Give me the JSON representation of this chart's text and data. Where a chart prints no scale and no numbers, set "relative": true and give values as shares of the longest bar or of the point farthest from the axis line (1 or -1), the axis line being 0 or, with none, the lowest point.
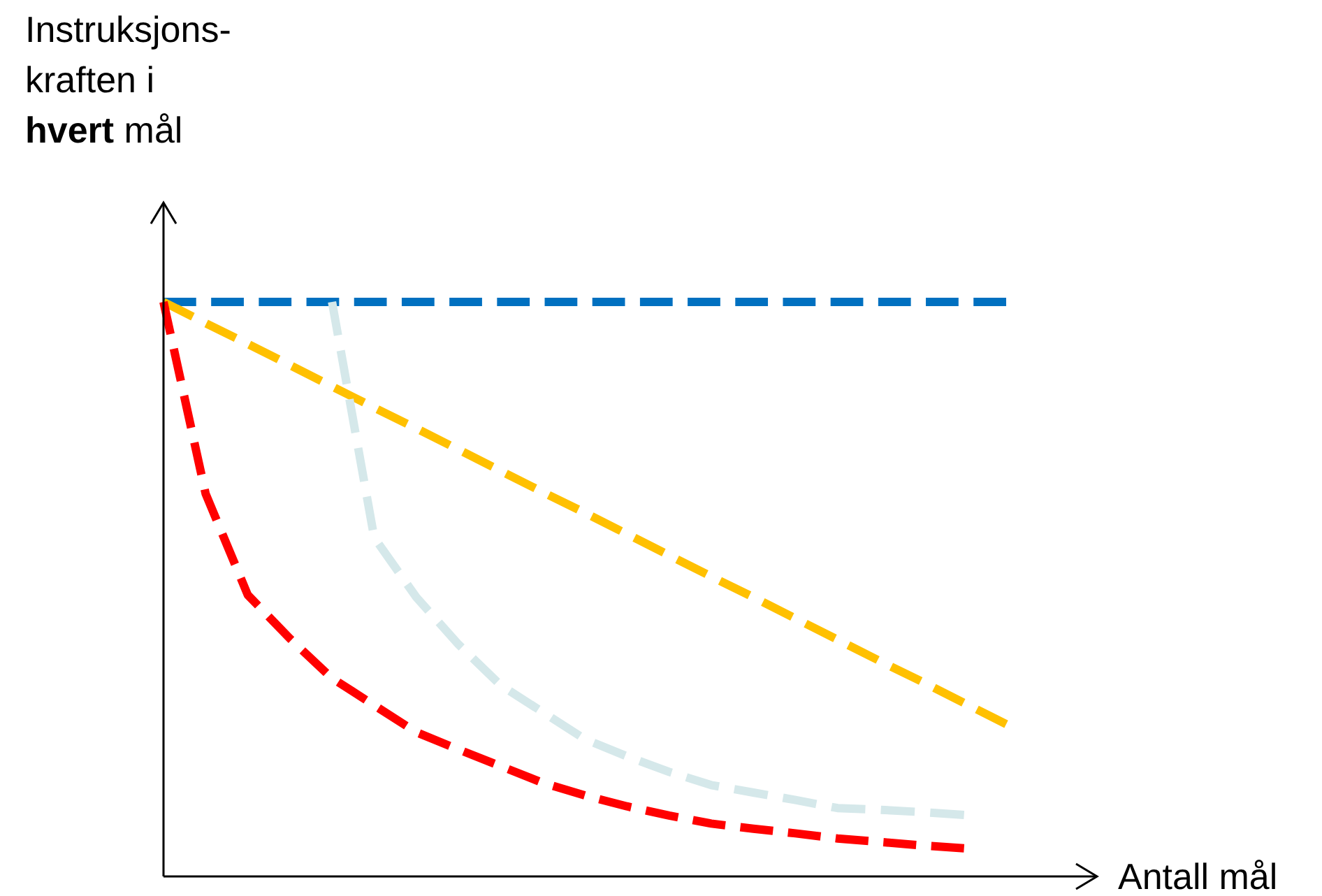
{
  "chart_data": {
    "type": "line",
    "relative": true,
    "ylabel": "Instruksjons-\nkraften i\nhvert mål",
    "xlabel": "Antall mål",
    "line_style": "dashed",
    "categories": [
      null,
      null,
      null,
      null,
      null,
      null,
      null,
      null,
      null,
      null,
      null,
      null,
      null,
      null,
      null,
      null,
      null,
      null,
      null,
      null,
      null
    ],
    "series": [
      {
        "color": "#0070c0",
        "values": [
          1,
          1,
          1,
          1,
          1,
          1,
          1,
          1,
          1,
          1,
          1,
          1,
          1,
          1,
          1,
          1,
          1,
          1,
          1,
          1,
          1
        ]
      },
      {
        "color": "#ffc000",
        "values": [
          1,
          0.963,
          0.927,
          0.89,
          0.853,
          0.816,
          0.78,
          0.743,
          0.706,
          0.669,
          0.633,
          0.596,
          0.559,
          0.522,
          0.486,
          0.449,
          0.412,
          0.375,
          0.339,
          0.302,
          0.265
        ]
      },
      {
        "color": "#ff0000",
        "values": [
          1,
          0.666,
          0.49,
          0.414,
          0.345,
          0.298,
          0.251,
          0.221,
          0.192,
          0.163,
          0.141,
          0.122,
          0.106,
          0.092,
          0.083,
          0.075,
          0.066,
          0.06,
          0.054,
          0.049,
          null
        ]
      },
      {
        "color": "#d5e8ea",
        "values": [
          null,
          null,
          null,
          null,
          1,
          0.59,
          0.486,
          0.404,
          0.333,
          0.286,
          0.239,
          0.209,
          0.182,
          0.159,
          0.146,
          0.133,
          0.119,
          0.116,
          0.112,
          0.107,
          null
        ]
      }
    ]
  }
}
